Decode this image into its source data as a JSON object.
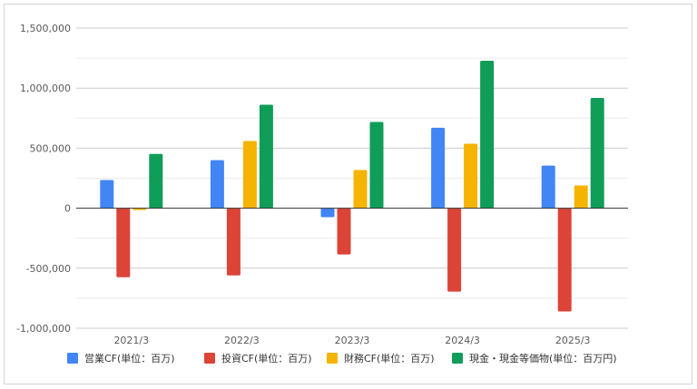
{
  "chart_data": {
    "type": "bar",
    "categories": [
      "2021/3",
      "2022/3",
      "2023/3",
      "2024/3",
      "2025/3"
    ],
    "series": [
      {
        "name": "営業CF(単位：百万)",
        "color": "#4285f4",
        "values": [
          235000,
          400000,
          -75000,
          670000,
          355000
        ]
      },
      {
        "name": "投資CF(単位：百万)",
        "color": "#db4437",
        "values": [
          -575000,
          -560000,
          -385000,
          -695000,
          -860000
        ]
      },
      {
        "name": "財務CF(単位：百万)",
        "color": "#f4b400",
        "values": [
          -15000,
          560000,
          318000,
          537000,
          190000
        ]
      },
      {
        "name": "現金・現金等価物(単位：百万円)",
        "color": "#0f9d58",
        "values": [
          452000,
          862000,
          718000,
          1228000,
          918000
        ]
      }
    ],
    "y_ticks": [
      {
        "value": 1500000,
        "label": "1,500,000"
      },
      {
        "value": 1000000,
        "label": "1,000,000"
      },
      {
        "value": 500000,
        "label": "500,000"
      },
      {
        "value": 0,
        "label": "0"
      },
      {
        "value": -500000,
        "label": "-500,000"
      },
      {
        "value": -1000000,
        "label": "-1,000,000"
      }
    ],
    "ylim": [
      -1000000,
      1500000
    ],
    "grid": true,
    "minor_grid_step": 250000,
    "legend_position": "bottom"
  }
}
